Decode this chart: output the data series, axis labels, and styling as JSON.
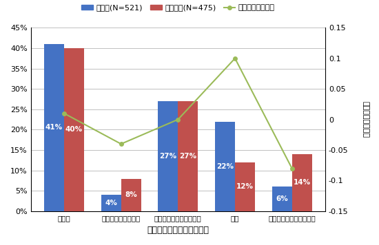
{
  "categories": [
    "正社員",
    "自営業・家族従業員",
    "非正社員・その他の社員",
    "学生",
    "専業主婦・無職・その他"
  ],
  "jitsugensha": [
    0.41,
    0.04,
    0.27,
    0.22,
    0.06
  ],
  "mijitsugensha": [
    0.4,
    0.08,
    0.27,
    0.12,
    0.14
  ],
  "difference": [
    0.01,
    -0.04,
    0.0,
    0.1,
    -0.08
  ],
  "jitsugensha_labels": [
    "41%",
    "4%",
    "27%",
    "22%",
    "6%"
  ],
  "mijitsugensha_labels": [
    "40%",
    "8%",
    "27%",
    "12%",
    "14%"
  ],
  "bar_color_blue": "#4472C4",
  "bar_color_red": "#C0504D",
  "line_color": "#9BBB59",
  "left_ylim": [
    0,
    0.45
  ],
  "right_ylim": [
    -0.15,
    0.15
  ],
  "left_yticks": [
    0.0,
    0.05,
    0.1,
    0.15,
    0.2,
    0.25,
    0.3,
    0.35,
    0.4,
    0.45
  ],
  "left_ytick_labels": [
    "0%",
    "5%",
    "10%",
    "15%",
    "20%",
    "25%",
    "30%",
    "35%",
    "40%",
    "45%"
  ],
  "right_yticks": [
    -0.15,
    -0.1,
    -0.05,
    0.0,
    0.05,
    0.1,
    0.15
  ],
  "right_ytick_labels": [
    "-0.15",
    "-0.1",
    "-0.05",
    "0",
    "0.05",
    "0.1",
    "0.15"
  ],
  "xlabel": "引っ越し前の働き方や立場",
  "right_ylabel": "実現者－未実現者",
  "legend_blue": "実現者(N=521)",
  "legend_red": "未実現者(N=475)",
  "legend_line": "実現者－未実現者",
  "background_color": "#FFFFFF",
  "grid_color": "#C0C0C0"
}
